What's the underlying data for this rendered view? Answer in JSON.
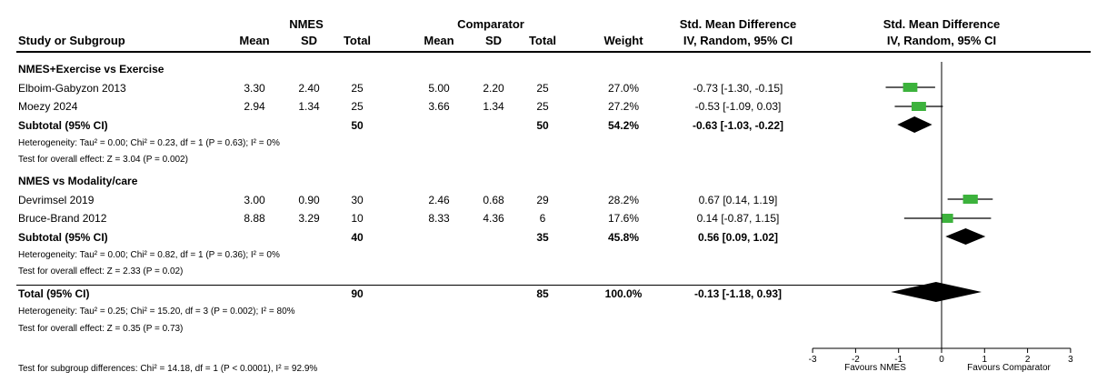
{
  "headers": {
    "group1": "NMES",
    "group2": "Comparator",
    "smd1": "Std. Mean Difference",
    "smd2": "Std. Mean Difference",
    "study": "Study or Subgroup",
    "mean1": "Mean",
    "sd1": "SD",
    "total1": "Total",
    "mean2": "Mean",
    "sd2": "SD",
    "total2": "Total",
    "weight": "Weight",
    "ci1": "IV, Random, 95% CI",
    "ci2": "IV, Random, 95% CI"
  },
  "subgroups": [
    {
      "title": "NMES+Exercise vs Exercise",
      "studies": [
        {
          "name": "Elboim-Gabyzon 2013",
          "mean1": "3.30",
          "sd1": "2.40",
          "n1": "25",
          "mean2": "5.00",
          "sd2": "2.20",
          "n2": "25",
          "weight": "27.0%",
          "ci": "-0.73 [-1.30, -0.15]"
        },
        {
          "name": "Moezy 2024",
          "mean1": "2.94",
          "sd1": "1.34",
          "n1": "25",
          "mean2": "3.66",
          "sd2": "1.34",
          "n2": "25",
          "weight": "27.2%",
          "ci": "-0.53 [-1.09, 0.03]"
        }
      ],
      "subtotal": {
        "label": "Subtotal (95% CI)",
        "n1": "50",
        "n2": "50",
        "weight": "54.2%",
        "ci": "-0.63 [-1.03, -0.22]"
      },
      "heterogeneity": "Heterogeneity: Tau² = 0.00; Chi² = 0.23, df = 1 (P = 0.63); I² = 0%",
      "overall": "Test for overall effect: Z = 3.04 (P = 0.002)"
    },
    {
      "title": "NMES vs Modality/care",
      "studies": [
        {
          "name": "Devrimsel 2019",
          "mean1": "3.00",
          "sd1": "0.90",
          "n1": "30",
          "mean2": "2.46",
          "sd2": "0.68",
          "n2": "29",
          "weight": "28.2%",
          "ci": "0.67 [0.14, 1.19]"
        },
        {
          "name": "Bruce-Brand 2012",
          "mean1": "8.88",
          "sd1": "3.29",
          "n1": "10",
          "mean2": "8.33",
          "sd2": "4.36",
          "n2": "6",
          "weight": "17.6%",
          "ci": "0.14 [-0.87, 1.15]"
        }
      ],
      "subtotal": {
        "label": "Subtotal (95% CI)",
        "n1": "40",
        "n2": "35",
        "weight": "45.8%",
        "ci": "0.56 [0.09, 1.02]"
      },
      "heterogeneity": "Heterogeneity: Tau² = 0.00; Chi² = 0.82, df = 1 (P = 0.36); I² = 0%",
      "overall": "Test for overall effect: Z = 2.33 (P = 0.02)"
    }
  ],
  "total": {
    "label": "Total (95% CI)",
    "n1": "90",
    "n2": "85",
    "weight": "100.0%",
    "ci": "-0.13 [-1.18, 0.93]"
  },
  "total_heterogeneity": "Heterogeneity: Tau² = 0.25; Chi² = 15.20, df = 3 (P = 0.002); I² = 80%",
  "total_overall": "Test for overall effect: Z = 0.35 (P = 0.73)",
  "subgroup_diff": "Test for subgroup differences: Chi² = 14.18, df = 1 (P < 0.0001), I² = 92.9%",
  "chart_data": {
    "type": "scatter",
    "xlim": [
      -3,
      3
    ],
    "ticks": [
      -3,
      -2,
      -1,
      0,
      1,
      2,
      3
    ],
    "tick_labels": [
      "-3",
      "-2",
      "-1",
      "0",
      "1",
      "2",
      "3"
    ],
    "xlabel_left": "Favours NMES",
    "xlabel_right": "Favours Comparator",
    "studies": [
      {
        "name": "Elboim-Gabyzon 2013",
        "est": -0.73,
        "lo": -1.3,
        "hi": -0.15,
        "weight": 27.0
      },
      {
        "name": "Moezy 2024",
        "est": -0.53,
        "lo": -1.09,
        "hi": 0.03,
        "weight": 27.2
      },
      {
        "name": "Devrimsel 2019",
        "est": 0.67,
        "lo": 0.14,
        "hi": 1.19,
        "weight": 28.2
      },
      {
        "name": "Bruce-Brand 2012",
        "est": 0.14,
        "lo": -0.87,
        "hi": 1.15,
        "weight": 17.6
      }
    ],
    "diamonds": [
      {
        "name": "Subtotal NMES+Exercise vs Exercise",
        "est": -0.63,
        "lo": -1.03,
        "hi": -0.22
      },
      {
        "name": "Subtotal NMES vs Modality/care",
        "est": 0.56,
        "lo": 0.09,
        "hi": 1.02
      },
      {
        "name": "Total",
        "est": -0.13,
        "lo": -1.18,
        "hi": 0.93
      }
    ],
    "colors": {
      "square": "#3cb23c",
      "diamond": "#000000"
    }
  }
}
